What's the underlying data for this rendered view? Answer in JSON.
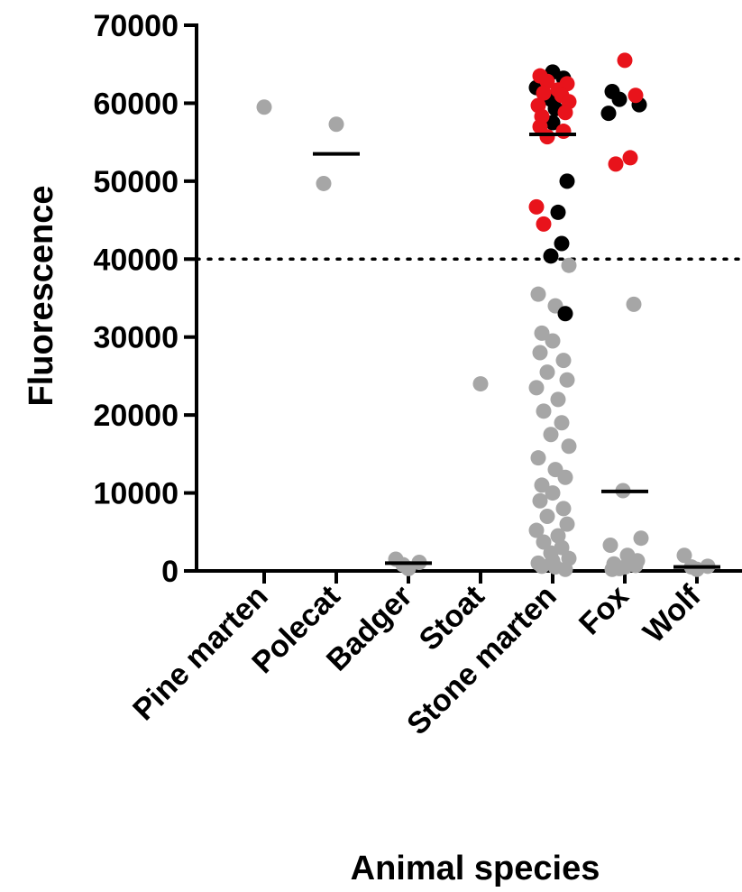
{
  "chart_data": {
    "type": "scatter",
    "title": "",
    "xlabel": "Animal species",
    "ylabel": "Fluorescence",
    "ylim": [
      0,
      70000
    ],
    "yticks": [
      0,
      10000,
      20000,
      30000,
      40000,
      50000,
      60000,
      70000
    ],
    "ytick_labels": [
      "0",
      "10000",
      "20000",
      "30000",
      "40000",
      "50000",
      "60000",
      "70000"
    ],
    "categories": [
      "Pine marten",
      "Polecat",
      "Badger",
      "Stoat",
      "Stone marten",
      "Fox",
      "Wolf"
    ],
    "threshold": {
      "y": 40000,
      "style": "dotted"
    },
    "grid": false,
    "colors": {
      "grey": "#a6a6a6",
      "black": "#000000",
      "red": "#e8131b"
    },
    "medians": [
      {
        "category": "Polecat",
        "y": 53500
      },
      {
        "category": "Badger",
        "y": 1000
      },
      {
        "category": "Stone marten",
        "y": 56000
      },
      {
        "category": "Fox",
        "y": 10200
      },
      {
        "category": "Wolf",
        "y": 500
      }
    ],
    "points": [
      {
        "category": "Pine marten",
        "y": 59500,
        "color": "grey"
      },
      {
        "category": "Polecat",
        "y": 57300,
        "color": "grey"
      },
      {
        "category": "Polecat",
        "y": 49700,
        "color": "grey"
      },
      {
        "category": "Badger",
        "y": 300,
        "color": "grey"
      },
      {
        "category": "Badger",
        "y": 1500,
        "color": "grey"
      },
      {
        "category": "Badger",
        "y": 1100,
        "color": "grey"
      },
      {
        "category": "Badger",
        "y": 800,
        "color": "grey"
      },
      {
        "category": "Stoat",
        "y": 24000,
        "color": "grey"
      },
      {
        "category": "Stone marten",
        "y": 64000,
        "color": "black"
      },
      {
        "category": "Stone marten",
        "y": 63500,
        "color": "red"
      },
      {
        "category": "Stone marten",
        "y": 63200,
        "color": "black"
      },
      {
        "category": "Stone marten",
        "y": 62800,
        "color": "red"
      },
      {
        "category": "Stone marten",
        "y": 62500,
        "color": "red"
      },
      {
        "category": "Stone marten",
        "y": 62000,
        "color": "black"
      },
      {
        "category": "Stone marten",
        "y": 61700,
        "color": "red"
      },
      {
        "category": "Stone marten",
        "y": 61300,
        "color": "red"
      },
      {
        "category": "Stone marten",
        "y": 61000,
        "color": "red"
      },
      {
        "category": "Stone marten",
        "y": 60500,
        "color": "black"
      },
      {
        "category": "Stone marten",
        "y": 60200,
        "color": "red"
      },
      {
        "category": "Stone marten",
        "y": 59700,
        "color": "red"
      },
      {
        "category": "Stone marten",
        "y": 59300,
        "color": "black"
      },
      {
        "category": "Stone marten",
        "y": 58800,
        "color": "red"
      },
      {
        "category": "Stone marten",
        "y": 58300,
        "color": "red"
      },
      {
        "category": "Stone marten",
        "y": 57500,
        "color": "black"
      },
      {
        "category": "Stone marten",
        "y": 57000,
        "color": "red"
      },
      {
        "category": "Stone marten",
        "y": 56400,
        "color": "red"
      },
      {
        "category": "Stone marten",
        "y": 55700,
        "color": "red"
      },
      {
        "category": "Stone marten",
        "y": 50000,
        "color": "black"
      },
      {
        "category": "Stone marten",
        "y": 46700,
        "color": "red"
      },
      {
        "category": "Stone marten",
        "y": 46000,
        "color": "black"
      },
      {
        "category": "Stone marten",
        "y": 44500,
        "color": "red"
      },
      {
        "category": "Stone marten",
        "y": 42000,
        "color": "black"
      },
      {
        "category": "Stone marten",
        "y": 40400,
        "color": "black"
      },
      {
        "category": "Stone marten",
        "y": 39200,
        "color": "grey"
      },
      {
        "category": "Stone marten",
        "y": 35500,
        "color": "grey"
      },
      {
        "category": "Stone marten",
        "y": 34000,
        "color": "grey"
      },
      {
        "category": "Stone marten",
        "y": 33000,
        "color": "black"
      },
      {
        "category": "Stone marten",
        "y": 30500,
        "color": "grey"
      },
      {
        "category": "Stone marten",
        "y": 29500,
        "color": "grey"
      },
      {
        "category": "Stone marten",
        "y": 28000,
        "color": "grey"
      },
      {
        "category": "Stone marten",
        "y": 27000,
        "color": "grey"
      },
      {
        "category": "Stone marten",
        "y": 25500,
        "color": "grey"
      },
      {
        "category": "Stone marten",
        "y": 24500,
        "color": "grey"
      },
      {
        "category": "Stone marten",
        "y": 23500,
        "color": "grey"
      },
      {
        "category": "Stone marten",
        "y": 22000,
        "color": "grey"
      },
      {
        "category": "Stone marten",
        "y": 20500,
        "color": "grey"
      },
      {
        "category": "Stone marten",
        "y": 19000,
        "color": "grey"
      },
      {
        "category": "Stone marten",
        "y": 17500,
        "color": "grey"
      },
      {
        "category": "Stone marten",
        "y": 16000,
        "color": "grey"
      },
      {
        "category": "Stone marten",
        "y": 14500,
        "color": "grey"
      },
      {
        "category": "Stone marten",
        "y": 13000,
        "color": "grey"
      },
      {
        "category": "Stone marten",
        "y": 12000,
        "color": "grey"
      },
      {
        "category": "Stone marten",
        "y": 11000,
        "color": "grey"
      },
      {
        "category": "Stone marten",
        "y": 10000,
        "color": "grey"
      },
      {
        "category": "Stone marten",
        "y": 9000,
        "color": "grey"
      },
      {
        "category": "Stone marten",
        "y": 8000,
        "color": "grey"
      },
      {
        "category": "Stone marten",
        "y": 7000,
        "color": "grey"
      },
      {
        "category": "Stone marten",
        "y": 6000,
        "color": "grey"
      },
      {
        "category": "Stone marten",
        "y": 5200,
        "color": "grey"
      },
      {
        "category": "Stone marten",
        "y": 4500,
        "color": "grey"
      },
      {
        "category": "Stone marten",
        "y": 3700,
        "color": "grey"
      },
      {
        "category": "Stone marten",
        "y": 3000,
        "color": "grey"
      },
      {
        "category": "Stone marten",
        "y": 2300,
        "color": "grey"
      },
      {
        "category": "Stone marten",
        "y": 1600,
        "color": "grey"
      },
      {
        "category": "Stone marten",
        "y": 1000,
        "color": "grey"
      },
      {
        "category": "Stone marten",
        "y": 500,
        "color": "grey"
      },
      {
        "category": "Stone marten",
        "y": 200,
        "color": "grey"
      },
      {
        "category": "Stone marten",
        "y": 600,
        "color": "grey"
      },
      {
        "category": "Stone marten",
        "y": 1300,
        "color": "grey"
      },
      {
        "category": "Fox",
        "y": 65500,
        "color": "red"
      },
      {
        "category": "Fox",
        "y": 61500,
        "color": "black"
      },
      {
        "category": "Fox",
        "y": 61000,
        "color": "red"
      },
      {
        "category": "Fox",
        "y": 60500,
        "color": "black"
      },
      {
        "category": "Fox",
        "y": 59800,
        "color": "black"
      },
      {
        "category": "Fox",
        "y": 58700,
        "color": "black"
      },
      {
        "category": "Fox",
        "y": 53000,
        "color": "red"
      },
      {
        "category": "Fox",
        "y": 52200,
        "color": "red"
      },
      {
        "category": "Fox",
        "y": 34200,
        "color": "grey"
      },
      {
        "category": "Fox",
        "y": 10300,
        "color": "grey"
      },
      {
        "category": "Fox",
        "y": 4200,
        "color": "grey"
      },
      {
        "category": "Fox",
        "y": 3300,
        "color": "grey"
      },
      {
        "category": "Fox",
        "y": 2000,
        "color": "grey"
      },
      {
        "category": "Fox",
        "y": 1300,
        "color": "grey"
      },
      {
        "category": "Fox",
        "y": 900,
        "color": "grey"
      },
      {
        "category": "Fox",
        "y": 500,
        "color": "grey"
      },
      {
        "category": "Fox",
        "y": 200,
        "color": "grey"
      },
      {
        "category": "Fox",
        "y": 700,
        "color": "grey"
      },
      {
        "category": "Fox",
        "y": 300,
        "color": "grey"
      },
      {
        "category": "Wolf",
        "y": 200,
        "color": "grey"
      },
      {
        "category": "Wolf",
        "y": 2000,
        "color": "grey"
      },
      {
        "category": "Wolf",
        "y": 600,
        "color": "grey"
      },
      {
        "category": "Wolf",
        "y": 500,
        "color": "grey"
      }
    ]
  }
}
